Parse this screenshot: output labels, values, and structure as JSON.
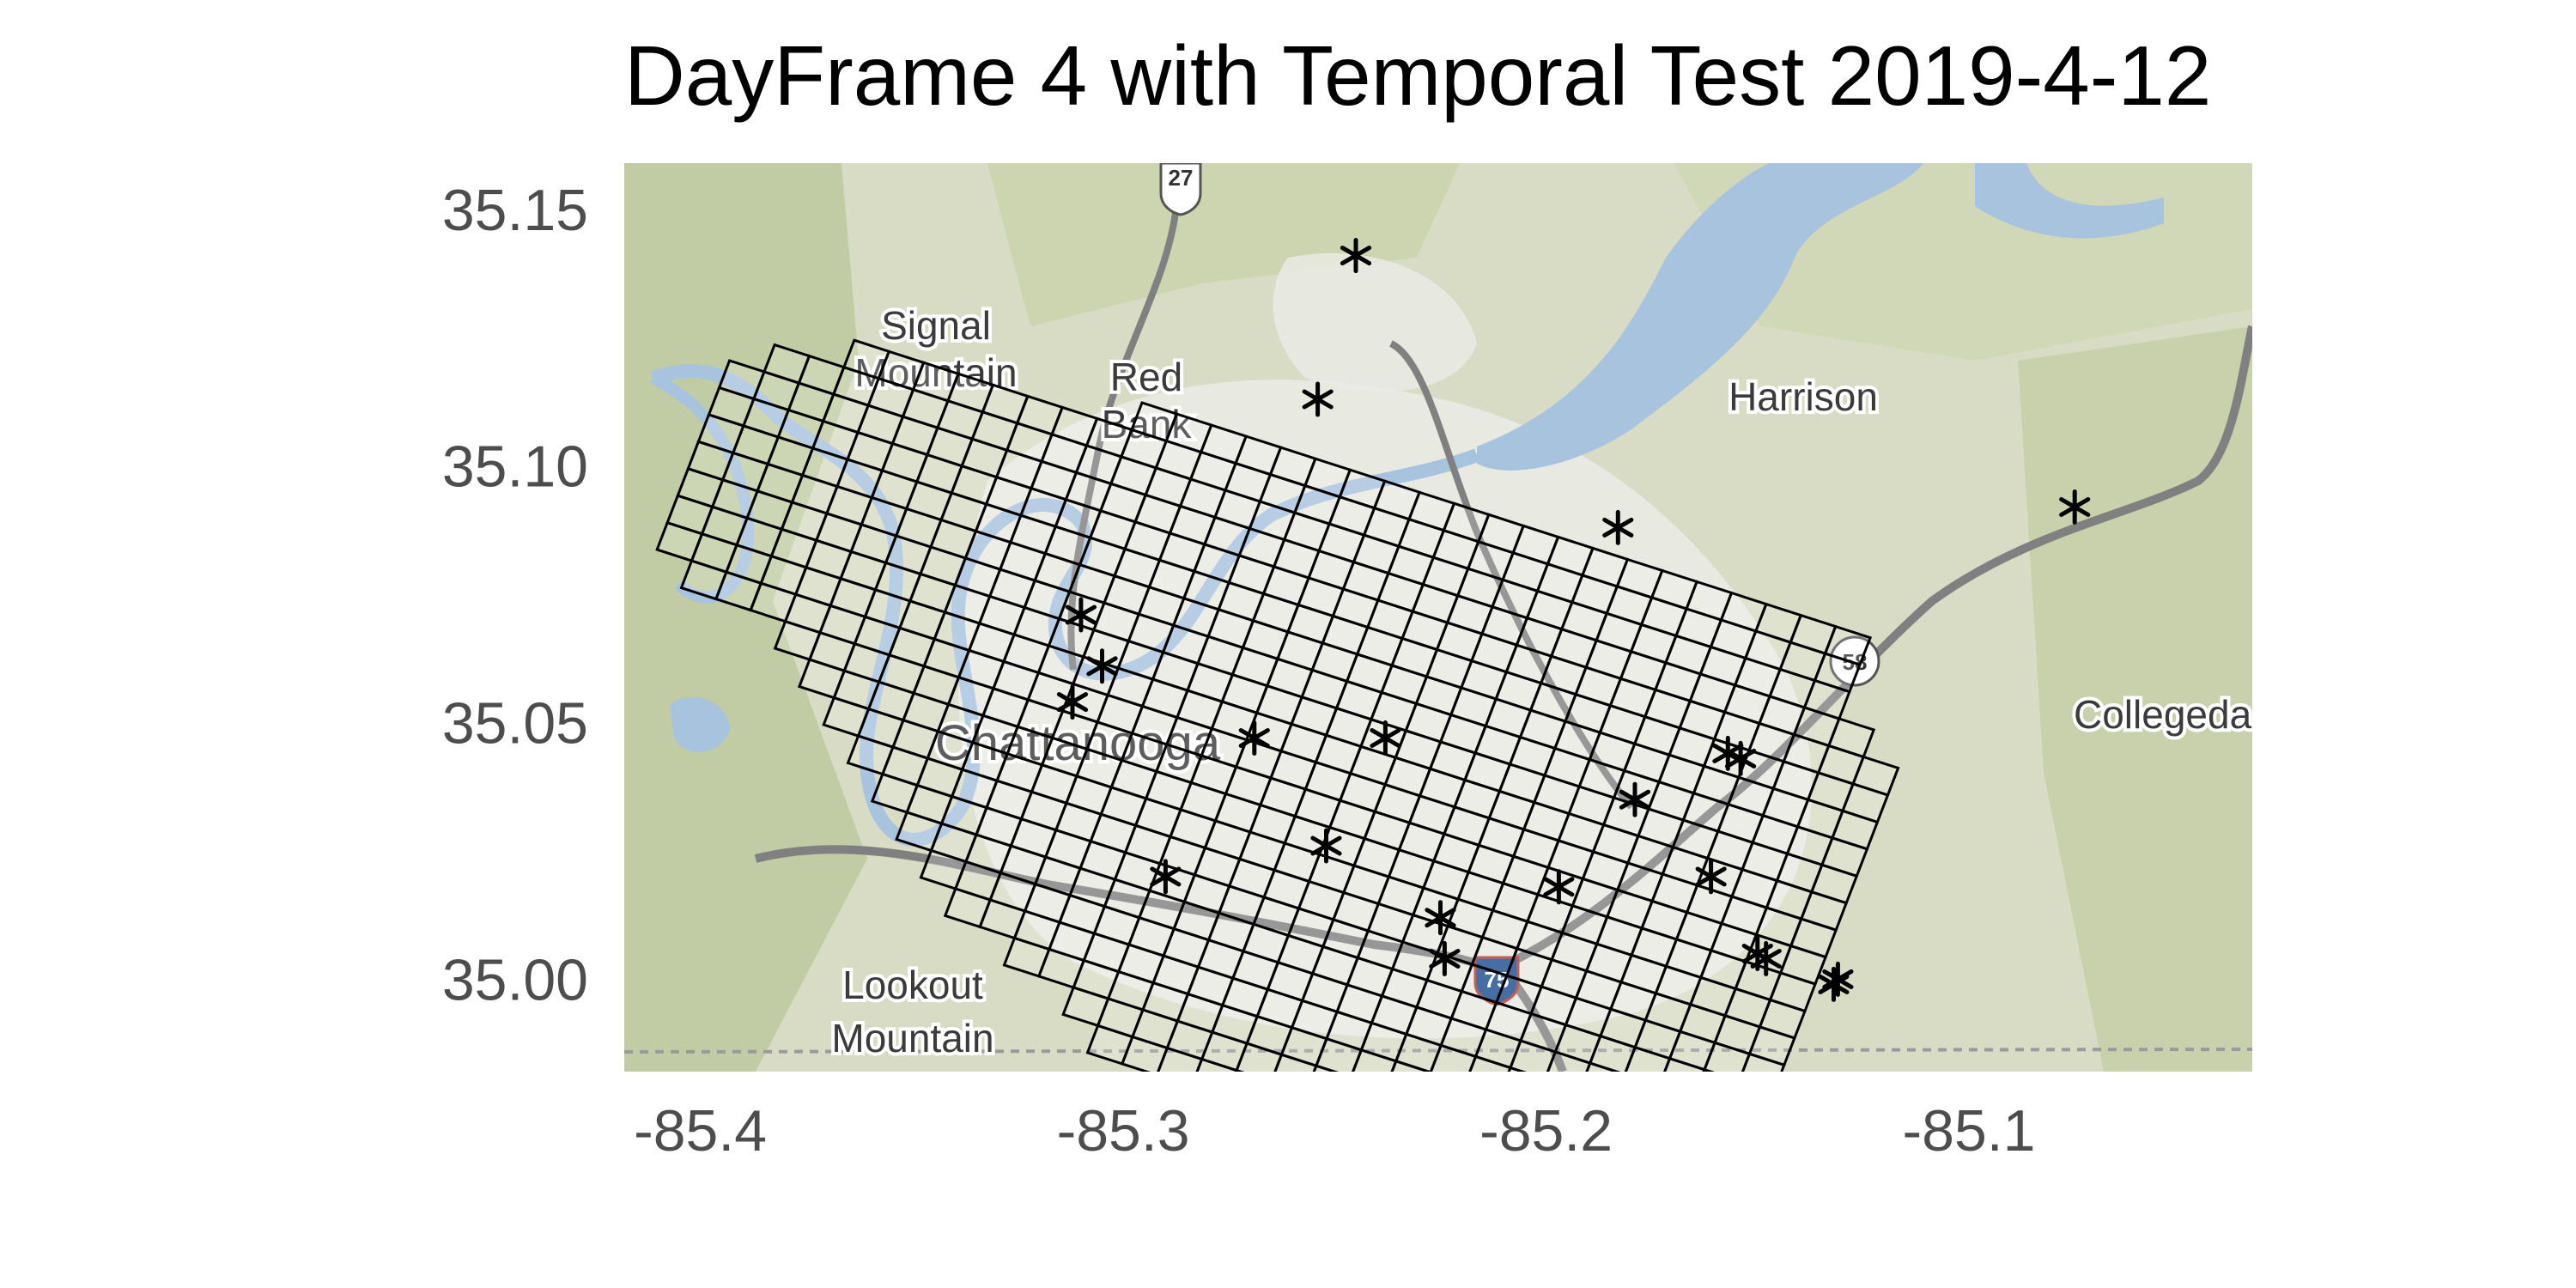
{
  "title": "DayFrame 4 with Temporal Test 2019-4-12",
  "chart_data": {
    "type": "map",
    "title": "DayFrame 4 with Temporal Test 2019-4-12",
    "xlim": [
      -85.418,
      -85.033
    ],
    "ylim": [
      34.982,
      35.159
    ],
    "x_ticks": [
      {
        "value": -85.4,
        "label": "-85.4"
      },
      {
        "value": -85.3,
        "label": "-85.3"
      },
      {
        "value": -85.2,
        "label": "-85.2"
      },
      {
        "value": -85.1,
        "label": "-85.1"
      }
    ],
    "y_ticks": [
      {
        "value": 35.15,
        "label": "35.15"
      },
      {
        "value": 35.1,
        "label": "35.10"
      },
      {
        "value": 35.05,
        "label": "35.05"
      },
      {
        "value": 35.0,
        "label": "35.00"
      }
    ],
    "grid": {
      "origin": [
        -85.398,
        35.11
      ],
      "u_step": [
        0.0082,
        -0.00218
      ],
      "v_step": [
        0.00245,
        0.00526
      ],
      "u_range": [
        0,
        34
      ],
      "v_range": [
        -17,
        5
      ],
      "v_min_by_u": [
        -5,
        -6,
        -6,
        -6,
        -7,
        -8,
        -9,
        -10,
        -11,
        -12,
        -13,
        -14,
        -14,
        -15,
        -15,
        -16,
        -17,
        -17,
        -17,
        -17,
        -17,
        -17,
        -17,
        -17,
        -17,
        -17,
        -17,
        -17,
        -17,
        -17,
        -17,
        -17,
        -16,
        -16
      ],
      "v_max_by_u": [
        2,
        3,
        3,
        4,
        4,
        4,
        4,
        4,
        4,
        4,
        4,
        5,
        5,
        5,
        5,
        5,
        5,
        5,
        5,
        5,
        5,
        5,
        5,
        5,
        5,
        5,
        5,
        5,
        5,
        5,
        5,
        5,
        2,
        1
      ]
    },
    "points": [
      {
        "lon": -85.245,
        "lat": 35.141
      },
      {
        "lon": -85.254,
        "lat": 35.113
      },
      {
        "lon": -85.183,
        "lat": 35.088
      },
      {
        "lon": -85.075,
        "lat": 35.092
      },
      {
        "lon": -85.31,
        "lat": 35.071
      },
      {
        "lon": -85.305,
        "lat": 35.061
      },
      {
        "lon": -85.312,
        "lat": 35.054
      },
      {
        "lon": -85.269,
        "lat": 35.047
      },
      {
        "lon": -85.238,
        "lat": 35.047
      },
      {
        "lon": -85.157,
        "lat": 35.044
      },
      {
        "lon": -85.154,
        "lat": 35.043
      },
      {
        "lon": -85.179,
        "lat": 35.035
      },
      {
        "lon": -85.252,
        "lat": 35.026
      },
      {
        "lon": -85.29,
        "lat": 35.02
      },
      {
        "lon": -85.197,
        "lat": 35.018
      },
      {
        "lon": -85.161,
        "lat": 35.02
      },
      {
        "lon": -85.225,
        "lat": 35.012
      },
      {
        "lon": -85.224,
        "lat": 35.004
      },
      {
        "lon": -85.15,
        "lat": 35.005
      },
      {
        "lon": -85.148,
        "lat": 35.004
      },
      {
        "lon": -85.132,
        "lat": 34.999
      },
      {
        "lon": -85.131,
        "lat": 35.0
      }
    ]
  },
  "map_labels": {
    "signal_mountain": [
      "Signal",
      "Mountain"
    ],
    "red_bank": [
      "Red",
      "Bank"
    ],
    "harrison": "Harrison",
    "chattanooga": "Chattanooga",
    "collegedale": "Collegeda",
    "lookout_mountain": [
      "Lookout",
      "Mountain"
    ],
    "us27_shield": "27",
    "i75_shield": "75",
    "sr58_shield": "58"
  },
  "colors": {
    "map_base": "#d8dcc4",
    "terrain_green": "#b9c79a",
    "urban_gray": "#ebebe6",
    "water": "#a7c3de",
    "highway": "#808080",
    "grid_cell_fill": "rgba(255,255,255,0.18)",
    "grid_line": "#000000",
    "point_marker": "#000000"
  }
}
